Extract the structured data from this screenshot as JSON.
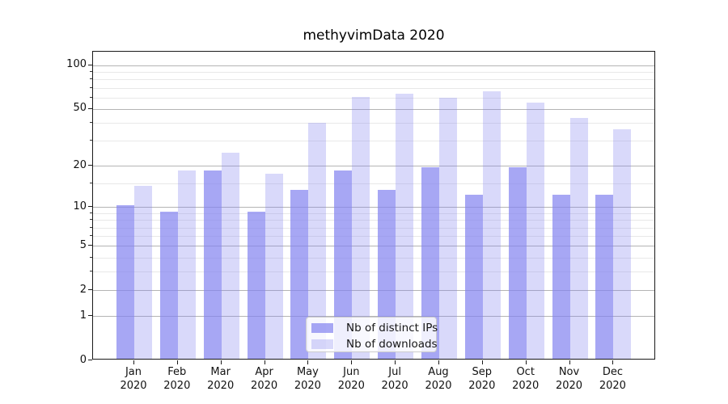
{
  "title": "methyvimData 2020",
  "legend": {
    "items": [
      {
        "label": "Nb of distinct IPs"
      },
      {
        "label": "Nb of downloads"
      }
    ]
  },
  "colors": {
    "series_fills": [
      "rgba(130,130,240,0.70)",
      "rgba(130,130,240,0.30)"
    ],
    "major_grid": "#b4b4b4",
    "minor_grid": "#e8e8e8",
    "spine": "#1a1a1a"
  },
  "y_axis": {
    "tick_labels": [
      "0",
      "1",
      "2",
      "5",
      "10",
      "20",
      "50",
      "100"
    ],
    "tick_values": [
      0,
      1,
      2,
      5,
      10,
      20,
      50,
      100
    ],
    "minor_tick_values": [
      3,
      4,
      6,
      7,
      8,
      9,
      15,
      30,
      40,
      60,
      70,
      80,
      90
    ]
  },
  "x_axis": {
    "months": [
      {
        "month": "Jan",
        "year": "2020"
      },
      {
        "month": "Feb",
        "year": "2020"
      },
      {
        "month": "Mar",
        "year": "2020"
      },
      {
        "month": "Apr",
        "year": "2020"
      },
      {
        "month": "May",
        "year": "2020"
      },
      {
        "month": "Jun",
        "year": "2020"
      },
      {
        "month": "Jul",
        "year": "2020"
      },
      {
        "month": "Aug",
        "year": "2020"
      },
      {
        "month": "Sep",
        "year": "2020"
      },
      {
        "month": "Oct",
        "year": "2020"
      },
      {
        "month": "Nov",
        "year": "2020"
      },
      {
        "month": "Dec",
        "year": "2020"
      }
    ]
  },
  "chart_data": {
    "type": "bar",
    "title": "methyvimData 2020",
    "categories": [
      "Jan 2020",
      "Feb 2020",
      "Mar 2020",
      "Apr 2020",
      "May 2020",
      "Jun 2020",
      "Jul 2020",
      "Aug 2020",
      "Sep 2020",
      "Oct 2020",
      "Nov 2020",
      "Dec 2020"
    ],
    "series": [
      {
        "name": "Nb of distinct IPs",
        "values": [
          10,
          9,
          18,
          9,
          13,
          18,
          13,
          19,
          12,
          19,
          12,
          12
        ]
      },
      {
        "name": "Nb of downloads",
        "values": [
          14,
          18,
          24,
          17,
          39,
          59,
          62,
          58,
          65,
          54,
          42,
          35
        ]
      }
    ],
    "xlabel": "",
    "ylabel": "",
    "yscale": "log1p",
    "yticks": [
      0,
      1,
      2,
      5,
      10,
      20,
      50,
      100
    ],
    "ylim": [
      0,
      123
    ],
    "grid": "horizontal",
    "legend_position": "inside lower-center"
  }
}
